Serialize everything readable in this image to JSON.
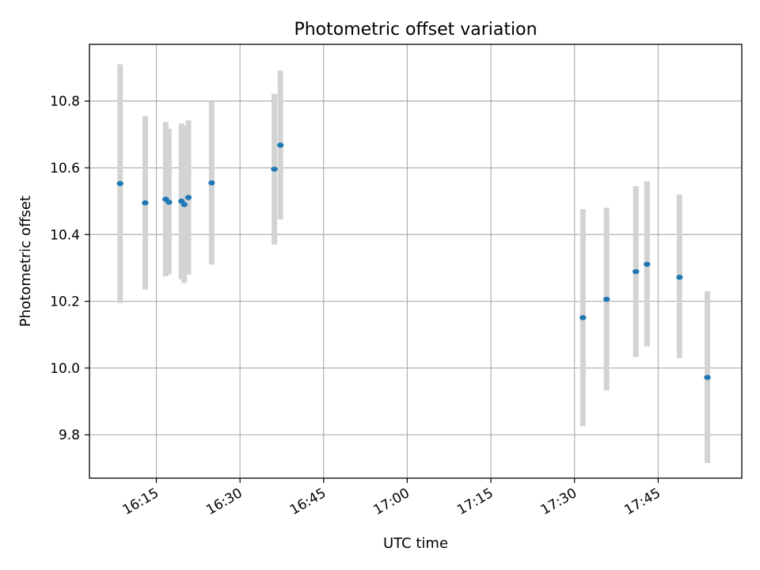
{
  "chart_data": {
    "type": "scatter",
    "title": "Photometric offset variation",
    "xlabel": "UTC time",
    "ylabel": "Photometric offset",
    "x_axis_type": "time",
    "xlim": [
      "16:03",
      "18:00"
    ],
    "ylim": [
      9.67,
      10.97
    ],
    "xticks": [
      "16:15",
      "16:30",
      "16:45",
      "17:00",
      "17:15",
      "17:30",
      "17:45"
    ],
    "yticks": [
      9.8,
      10.0,
      10.2,
      10.4,
      10.6,
      10.8
    ],
    "grid": true,
    "colors": {
      "point": "#1f77b4",
      "errorbar": "#d3d3d3"
    },
    "series": [
      {
        "points": [
          {
            "t": "16:08:30",
            "y": 10.553,
            "lo": 10.195,
            "hi": 10.91
          },
          {
            "t": "16:13:00",
            "y": 10.495,
            "lo": 10.235,
            "hi": 10.755
          },
          {
            "t": "16:16:40",
            "y": 10.506,
            "lo": 10.275,
            "hi": 10.737
          },
          {
            "t": "16:17:15",
            "y": 10.497,
            "lo": 10.28,
            "hi": 10.717
          },
          {
            "t": "16:19:30",
            "y": 10.5,
            "lo": 10.265,
            "hi": 10.733
          },
          {
            "t": "16:20:00",
            "y": 10.49,
            "lo": 10.255,
            "hi": 10.725
          },
          {
            "t": "16:20:45",
            "y": 10.511,
            "lo": 10.28,
            "hi": 10.742
          },
          {
            "t": "16:24:55",
            "y": 10.555,
            "lo": 10.31,
            "hi": 10.8
          },
          {
            "t": "16:36:10",
            "y": 10.596,
            "lo": 10.37,
            "hi": 10.822
          },
          {
            "t": "16:37:15",
            "y": 10.668,
            "lo": 10.445,
            "hi": 10.891
          },
          {
            "t": "17:31:30",
            "y": 10.151,
            "lo": 9.826,
            "hi": 10.476
          },
          {
            "t": "17:35:45",
            "y": 10.206,
            "lo": 9.933,
            "hi": 10.48
          },
          {
            "t": "17:41:00",
            "y": 10.289,
            "lo": 10.033,
            "hi": 10.545
          },
          {
            "t": "17:43:00",
            "y": 10.311,
            "lo": 10.065,
            "hi": 10.56
          },
          {
            "t": "17:48:50",
            "y": 10.272,
            "lo": 10.03,
            "hi": 10.52
          },
          {
            "t": "17:53:50",
            "y": 9.972,
            "lo": 9.715,
            "hi": 10.23
          }
        ]
      }
    ]
  }
}
